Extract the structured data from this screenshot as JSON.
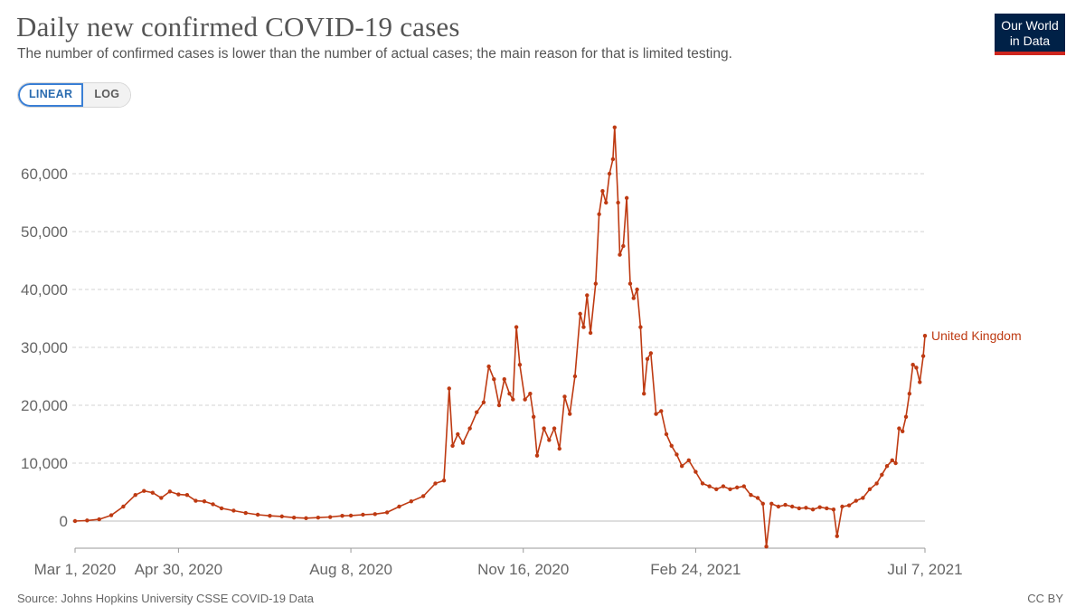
{
  "header": {
    "title": "Daily new confirmed COVID-19 cases",
    "subtitle": "The number of confirmed cases is lower than the number of actual cases; the main reason for that is limited testing."
  },
  "logo": {
    "line1": "Our World",
    "line2": "in Data"
  },
  "scale_toggle": {
    "linear_label": "LINEAR",
    "log_label": "LOG",
    "selected": "LINEAR"
  },
  "footer": {
    "source": "Source: Johns Hopkins University CSSE COVID-19 Data",
    "license": "CC BY"
  },
  "colors": {
    "series": "#be3a12",
    "grid": "#d3d3d3",
    "axis": "#999999",
    "logo_bg": "#002147",
    "logo_accent": "#ce261e",
    "toggle_active": "#3a7fd5"
  },
  "chart_data": {
    "type": "line",
    "title": "Daily new confirmed COVID-19 cases",
    "xlabel": "",
    "ylabel": "",
    "x_start": "2020-03-01",
    "x_end": "2021-07-07",
    "xlim": [
      "2020-03-01",
      "2021-07-07"
    ],
    "ylim": [
      -5000,
      70000
    ],
    "y_ticks": [
      0,
      10000,
      20000,
      30000,
      40000,
      50000,
      60000
    ],
    "y_tick_labels": [
      "0",
      "10,000",
      "20,000",
      "30,000",
      "40,000",
      "50,000",
      "60,000"
    ],
    "x_ticks": [
      {
        "date": "2020-03-01",
        "label": "Mar 1, 2020"
      },
      {
        "date": "2020-04-30",
        "label": "Apr 30, 2020"
      },
      {
        "date": "2020-08-08",
        "label": "Aug 8, 2020"
      },
      {
        "date": "2020-11-16",
        "label": "Nov 16, 2020"
      },
      {
        "date": "2021-02-24",
        "label": "Feb 24, 2021"
      },
      {
        "date": "2021-07-07",
        "label": "Jul 7, 2021"
      }
    ],
    "grid": "horizontal dashed",
    "series": [
      {
        "name": "United Kingdom",
        "points": [
          [
            "2020-03-01",
            0
          ],
          [
            "2020-03-08",
            100
          ],
          [
            "2020-03-15",
            300
          ],
          [
            "2020-03-22",
            1000
          ],
          [
            "2020-03-29",
            2500
          ],
          [
            "2020-04-05",
            4500
          ],
          [
            "2020-04-10",
            5200
          ],
          [
            "2020-04-15",
            4900
          ],
          [
            "2020-04-20",
            4000
          ],
          [
            "2020-04-25",
            5100
          ],
          [
            "2020-04-30",
            4600
          ],
          [
            "2020-05-05",
            4500
          ],
          [
            "2020-05-10",
            3500
          ],
          [
            "2020-05-15",
            3400
          ],
          [
            "2020-05-20",
            2900
          ],
          [
            "2020-05-25",
            2200
          ],
          [
            "2020-06-01",
            1800
          ],
          [
            "2020-06-08",
            1400
          ],
          [
            "2020-06-15",
            1100
          ],
          [
            "2020-06-22",
            900
          ],
          [
            "2020-06-29",
            800
          ],
          [
            "2020-07-06",
            600
          ],
          [
            "2020-07-13",
            500
          ],
          [
            "2020-07-20",
            600
          ],
          [
            "2020-07-27",
            700
          ],
          [
            "2020-08-03",
            900
          ],
          [
            "2020-08-08",
            950
          ],
          [
            "2020-08-15",
            1100
          ],
          [
            "2020-08-22",
            1200
          ],
          [
            "2020-08-29",
            1500
          ],
          [
            "2020-09-05",
            2500
          ],
          [
            "2020-09-12",
            3400
          ],
          [
            "2020-09-19",
            4300
          ],
          [
            "2020-09-26",
            6500
          ],
          [
            "2020-10-01",
            7000
          ],
          [
            "2020-10-04",
            22900
          ],
          [
            "2020-10-06",
            13000
          ],
          [
            "2020-10-09",
            15000
          ],
          [
            "2020-10-12",
            13500
          ],
          [
            "2020-10-16",
            16000
          ],
          [
            "2020-10-20",
            18800
          ],
          [
            "2020-10-24",
            20500
          ],
          [
            "2020-10-27",
            26700
          ],
          [
            "2020-10-30",
            24500
          ],
          [
            "2020-11-02",
            20000
          ],
          [
            "2020-11-05",
            24500
          ],
          [
            "2020-11-08",
            22000
          ],
          [
            "2020-11-10",
            21000
          ],
          [
            "2020-11-12",
            33500
          ],
          [
            "2020-11-14",
            27000
          ],
          [
            "2020-11-17",
            21000
          ],
          [
            "2020-11-20",
            22000
          ],
          [
            "2020-11-22",
            18000
          ],
          [
            "2020-11-24",
            11300
          ],
          [
            "2020-11-28",
            16000
          ],
          [
            "2020-12-01",
            14000
          ],
          [
            "2020-12-04",
            16000
          ],
          [
            "2020-12-07",
            12500
          ],
          [
            "2020-12-10",
            21500
          ],
          [
            "2020-12-13",
            18500
          ],
          [
            "2020-12-16",
            25000
          ],
          [
            "2020-12-19",
            35800
          ],
          [
            "2020-12-21",
            33500
          ],
          [
            "2020-12-23",
            39000
          ],
          [
            "2020-12-25",
            32500
          ],
          [
            "2020-12-28",
            41000
          ],
          [
            "2020-12-30",
            53000
          ],
          [
            "2021-01-01",
            57000
          ],
          [
            "2021-01-03",
            55000
          ],
          [
            "2021-01-05",
            60000
          ],
          [
            "2021-01-07",
            62500
          ],
          [
            "2021-01-08",
            68000
          ],
          [
            "2021-01-10",
            55000
          ],
          [
            "2021-01-11",
            46000
          ],
          [
            "2021-01-13",
            47500
          ],
          [
            "2021-01-15",
            55800
          ],
          [
            "2021-01-17",
            41000
          ],
          [
            "2021-01-19",
            38500
          ],
          [
            "2021-01-21",
            40000
          ],
          [
            "2021-01-23",
            33500
          ],
          [
            "2021-01-25",
            22000
          ],
          [
            "2021-01-27",
            28000
          ],
          [
            "2021-01-29",
            29000
          ],
          [
            "2021-02-01",
            18500
          ],
          [
            "2021-02-04",
            19000
          ],
          [
            "2021-02-07",
            15000
          ],
          [
            "2021-02-10",
            13000
          ],
          [
            "2021-02-13",
            11500
          ],
          [
            "2021-02-16",
            9500
          ],
          [
            "2021-02-20",
            10500
          ],
          [
            "2021-02-24",
            8500
          ],
          [
            "2021-02-28",
            6500
          ],
          [
            "2021-03-04",
            6000
          ],
          [
            "2021-03-08",
            5500
          ],
          [
            "2021-03-12",
            6000
          ],
          [
            "2021-03-16",
            5500
          ],
          [
            "2021-03-20",
            5800
          ],
          [
            "2021-03-24",
            6000
          ],
          [
            "2021-03-28",
            4500
          ],
          [
            "2021-04-01",
            4000
          ],
          [
            "2021-04-04",
            3000
          ],
          [
            "2021-04-06",
            -4400
          ],
          [
            "2021-04-09",
            3000
          ],
          [
            "2021-04-13",
            2500
          ],
          [
            "2021-04-17",
            2800
          ],
          [
            "2021-04-21",
            2500
          ],
          [
            "2021-04-25",
            2200
          ],
          [
            "2021-04-29",
            2300
          ],
          [
            "2021-05-03",
            2000
          ],
          [
            "2021-05-07",
            2400
          ],
          [
            "2021-05-11",
            2200
          ],
          [
            "2021-05-15",
            2000
          ],
          [
            "2021-05-17",
            -2600
          ],
          [
            "2021-05-20",
            2500
          ],
          [
            "2021-05-24",
            2700
          ],
          [
            "2021-05-28",
            3500
          ],
          [
            "2021-06-01",
            4000
          ],
          [
            "2021-06-05",
            5500
          ],
          [
            "2021-06-09",
            6500
          ],
          [
            "2021-06-12",
            8000
          ],
          [
            "2021-06-15",
            9500
          ],
          [
            "2021-06-18",
            10500
          ],
          [
            "2021-06-20",
            10000
          ],
          [
            "2021-06-22",
            16000
          ],
          [
            "2021-06-24",
            15500
          ],
          [
            "2021-06-26",
            18000
          ],
          [
            "2021-06-28",
            22000
          ],
          [
            "2021-06-30",
            27000
          ],
          [
            "2021-07-02",
            26500
          ],
          [
            "2021-07-04",
            24000
          ],
          [
            "2021-07-06",
            28500
          ],
          [
            "2021-07-07",
            32000
          ]
        ]
      }
    ]
  }
}
